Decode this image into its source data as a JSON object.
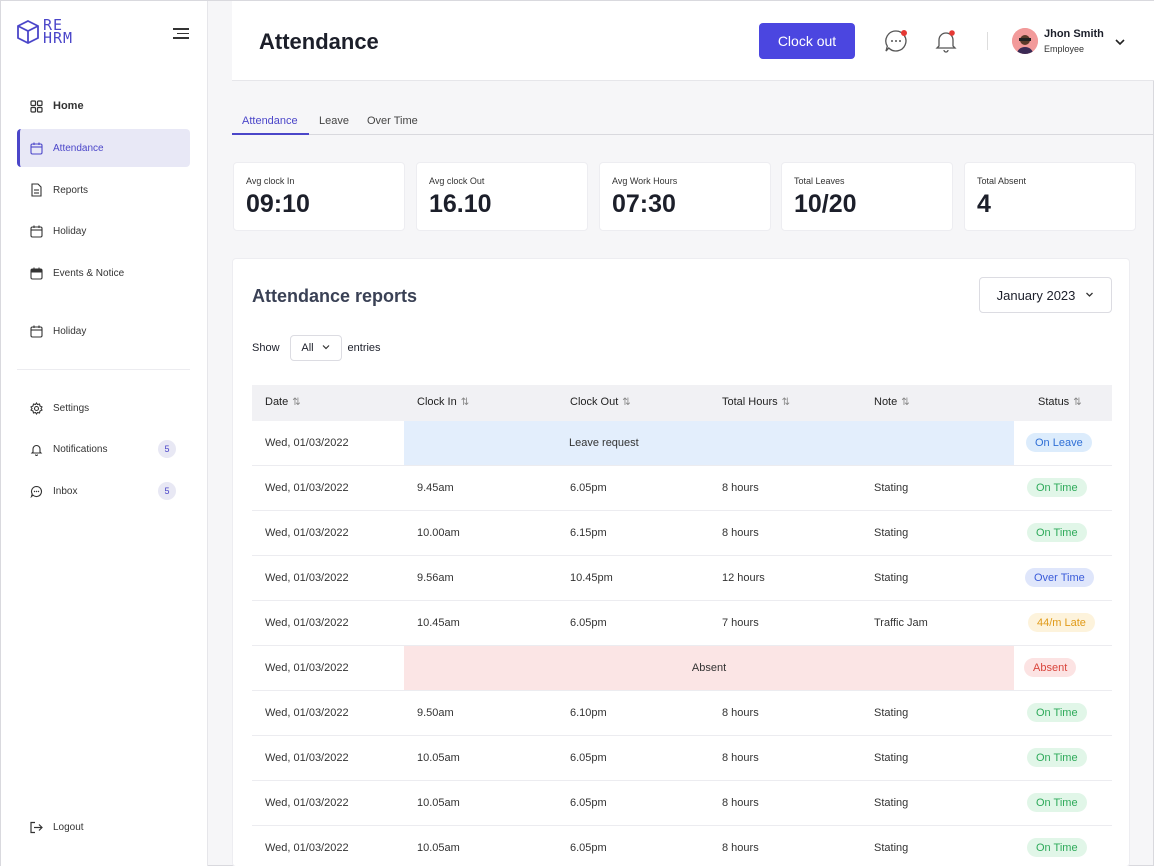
{
  "app": {
    "logo_text_line1": "RE",
    "logo_text_line2": "HRM"
  },
  "sidebar": {
    "items": [
      {
        "label": "Home",
        "icon": "grid-icon"
      },
      {
        "label": "Attendance",
        "icon": "calendar-icon"
      },
      {
        "label": "Reports",
        "icon": "document-icon"
      },
      {
        "label": "Holiday",
        "icon": "calendar-icon"
      },
      {
        "label": "Events & Notice",
        "icon": "calendar-filled-icon"
      },
      {
        "label": "Holiday",
        "icon": "calendar-icon"
      },
      {
        "label": "Settings",
        "icon": "gear-icon"
      },
      {
        "label": "Notifications",
        "icon": "bell-icon",
        "badge": "5"
      },
      {
        "label": "Inbox",
        "icon": "chat-icon",
        "badge": "5"
      },
      {
        "label": "Logout",
        "icon": "logout-icon"
      }
    ]
  },
  "header": {
    "title": "Attendance",
    "clock_out_label": "Clock out",
    "user": {
      "name": "Jhon Smith",
      "role": "Employee"
    }
  },
  "tabs": [
    {
      "label": "Attendance"
    },
    {
      "label": "Leave"
    },
    {
      "label": "Over Time"
    }
  ],
  "stats": [
    {
      "label": "Avg clock In",
      "value": "09:10"
    },
    {
      "label": "Avg clock Out",
      "value": "16.10"
    },
    {
      "label": "Avg Work Hours",
      "value": "07:30"
    },
    {
      "label": "Total Leaves",
      "value": "10/20"
    },
    {
      "label": "Total Absent",
      "value": "4"
    }
  ],
  "report": {
    "title": "Attendance reports",
    "month": "January 2023",
    "show_label": "Show",
    "show_value": "All",
    "entries_label": "entries",
    "columns": [
      "Date",
      "Clock In",
      "Clock Out",
      "Total Hours",
      "Note",
      "Status"
    ],
    "rows": [
      {
        "date": "Wed, 01/03/2022",
        "span": "Leave request",
        "span_type": "leave",
        "status": "On Leave",
        "status_type": "leave"
      },
      {
        "date": "Wed, 01/03/2022",
        "clock_in": "9.45am",
        "clock_out": "6.05pm",
        "hours": "8 hours",
        "note": "Stating",
        "status": "On Time",
        "status_type": "ontime"
      },
      {
        "date": "Wed, 01/03/2022",
        "clock_in": "10.00am",
        "clock_out": "6.15pm",
        "hours": "8 hours",
        "note": "Stating",
        "status": "On Time",
        "status_type": "ontime"
      },
      {
        "date": "Wed, 01/03/2022",
        "clock_in": "9.56am",
        "clock_out": "10.45pm",
        "hours": "12 hours",
        "note": "Stating",
        "status": "Over Time",
        "status_type": "over"
      },
      {
        "date": "Wed, 01/03/2022",
        "clock_in": "10.45am",
        "clock_out": "6.05pm",
        "hours": "7 hours",
        "note": "Traffic Jam",
        "status": "44/m Late",
        "status_type": "late"
      },
      {
        "date": "Wed, 01/03/2022",
        "span": "Absent",
        "span_type": "absent",
        "status": "Absent",
        "status_type": "absent"
      },
      {
        "date": "Wed, 01/03/2022",
        "clock_in": "9.50am",
        "clock_out": "6.10pm",
        "hours": "8 hours",
        "note": "Stating",
        "status": "On Time",
        "status_type": "ontime"
      },
      {
        "date": "Wed, 01/03/2022",
        "clock_in": "10.05am",
        "clock_out": "6.05pm",
        "hours": "8 hours",
        "note": "Stating",
        "status": "On Time",
        "status_type": "ontime"
      },
      {
        "date": "Wed, 01/03/2022",
        "clock_in": "10.05am",
        "clock_out": "6.05pm",
        "hours": "8 hours",
        "note": "Stating",
        "status": "On Time",
        "status_type": "ontime"
      },
      {
        "date": "Wed, 01/03/2022",
        "clock_in": "10.05am",
        "clock_out": "6.05pm",
        "hours": "8 hours",
        "note": "Stating",
        "status": "On Time",
        "status_type": "ontime"
      }
    ]
  },
  "colors": {
    "accent": "#4b46e0",
    "sidebar_active_bg": "#e8e8f6",
    "leave_row_bg": "#e3eefc",
    "absent_row_bg": "#fbe5e5"
  }
}
